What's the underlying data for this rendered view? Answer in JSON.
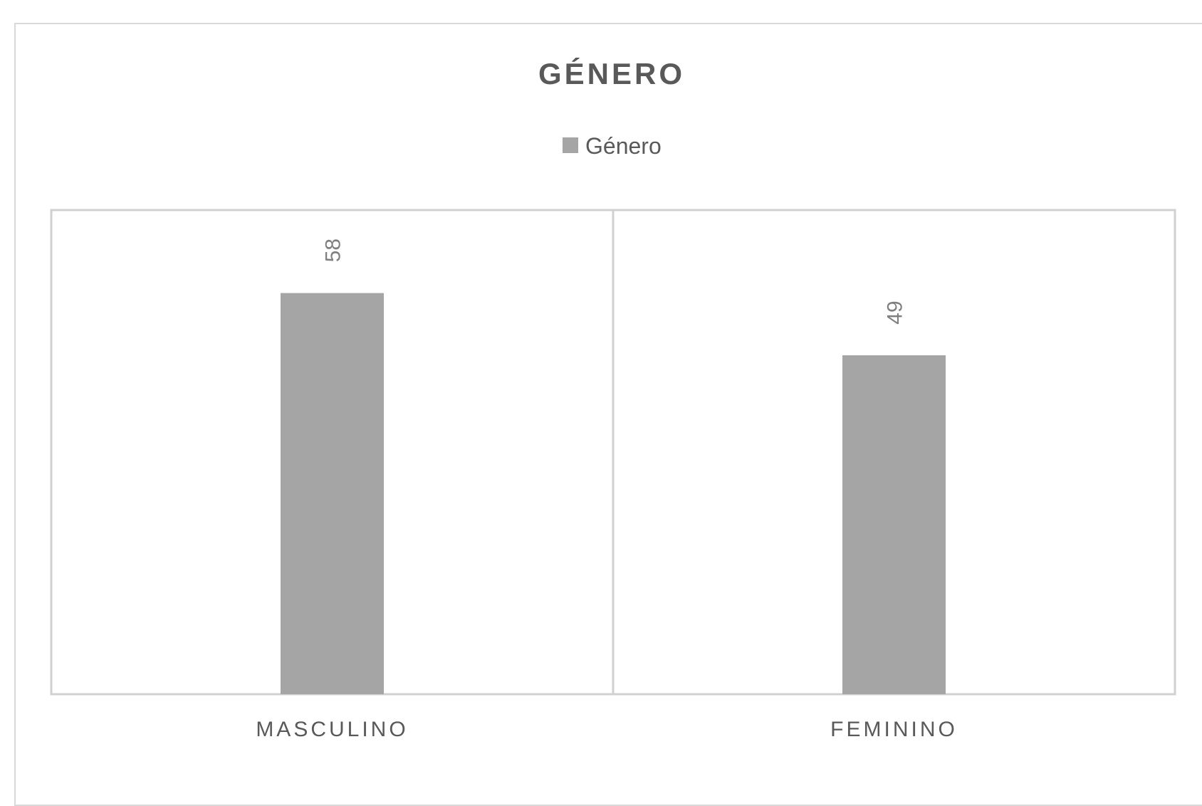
{
  "chart_data": {
    "type": "bar",
    "title": "GÉNERO",
    "categories": [
      "MASCULINO",
      "FEMININO"
    ],
    "series": [
      {
        "name": "Género",
        "values": [
          58,
          49
        ],
        "color": "#a5a5a5"
      }
    ],
    "ylim": [
      0,
      70
    ],
    "legend_position": "top",
    "grid": true,
    "data_labels_rotated": true
  }
}
